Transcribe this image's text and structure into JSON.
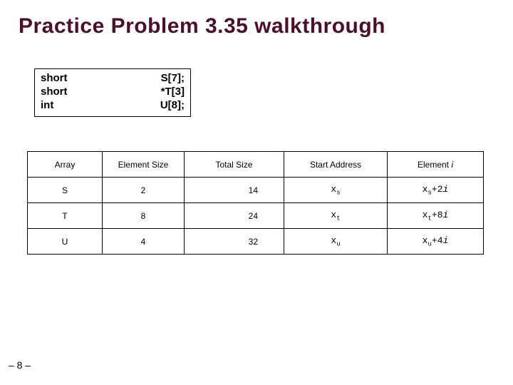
{
  "title": "Practice Problem 3.35 walkthrough",
  "decl": {
    "rows": [
      {
        "type": "short",
        "expr": "S[7];"
      },
      {
        "type": "short",
        "expr": "*T[3]"
      },
      {
        "type": "int",
        "expr": "U[8];"
      }
    ]
  },
  "table": {
    "cols": {
      "array": "Array",
      "elsz": "Element Size",
      "total": "Total Size",
      "start": "Start Address",
      "eli_prefix": "Element ",
      "eli_var": "i"
    },
    "rows": [
      {
        "array": "S",
        "elsz": "2",
        "total": "14",
        "start_x": "x",
        "start_sub": "s",
        "fx": "x",
        "fsub": "s",
        "fop": "+2",
        "fvar": "i"
      },
      {
        "array": "T",
        "elsz": "8",
        "total": "24",
        "start_x": "x",
        "start_sub": "t",
        "fx": "x",
        "fsub": "t",
        "fop": "+8",
        "fvar": "i"
      },
      {
        "array": "U",
        "elsz": "4",
        "total": "32",
        "start_x": "x",
        "start_sub": "u",
        "fx": "x",
        "fsub": "u",
        "fop": "+4",
        "fvar": "i"
      }
    ]
  },
  "footer": "– 8 –",
  "colors": {
    "title": "#4a0e2e",
    "border": "#000000",
    "bg": "#ffffff"
  }
}
